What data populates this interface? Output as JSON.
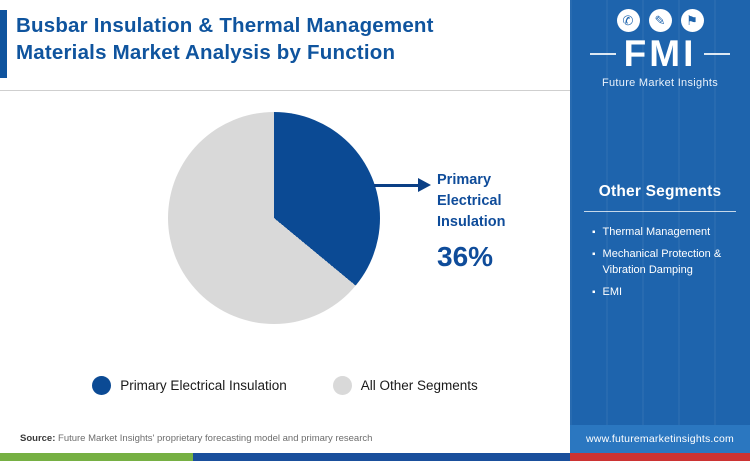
{
  "colors": {
    "title_blue": "#0f549e",
    "pie_blue": "#0b4a94",
    "pie_gray": "#d9d9d9",
    "panel_blue": "#1e64ad",
    "website_bar_blue": "#2b77c0",
    "footer_bar_green": "#76b043",
    "footer_bar_blue": "#1a4f9c",
    "footer_bar_red": "#cc3333"
  },
  "header": {
    "title_line1": "Busbar Insulation & Thermal Management",
    "title_line2": "Materials Market Analysis by Function"
  },
  "logo": {
    "icons": [
      {
        "name": "phone-icon",
        "glyph": "✆"
      },
      {
        "name": "pencil-icon",
        "glyph": "✎"
      },
      {
        "name": "flag-icon",
        "glyph": "⚑"
      }
    ],
    "monogram": "FMI",
    "name": "Future Market Insights"
  },
  "sidebar": {
    "heading": "Other Segments",
    "bullet_glyph": "▪",
    "items": [
      "Thermal Management",
      "Mechanical Protection & Vibration Damping",
      "EMI"
    ],
    "website": "www.futuremarketinsights.com"
  },
  "chart_data": {
    "type": "pie",
    "labels": [
      "Primary Electrical Insulation",
      "All Other Segments"
    ],
    "values": [
      36,
      64
    ],
    "colors": [
      "#0b4a94",
      "#d9d9d9"
    ],
    "start_angle_deg": 0,
    "direction": "clockwise",
    "annotation": {
      "label": "Primary Electrical Insulation",
      "value": "36%"
    },
    "legend_position": "bottom",
    "title": "Busbar Insulation & Thermal Management Materials Market Analysis by Function"
  },
  "footer": {
    "source_prefix": "Source:",
    "source_text": " Future Market Insights' proprietary forecasting model and primary research"
  }
}
